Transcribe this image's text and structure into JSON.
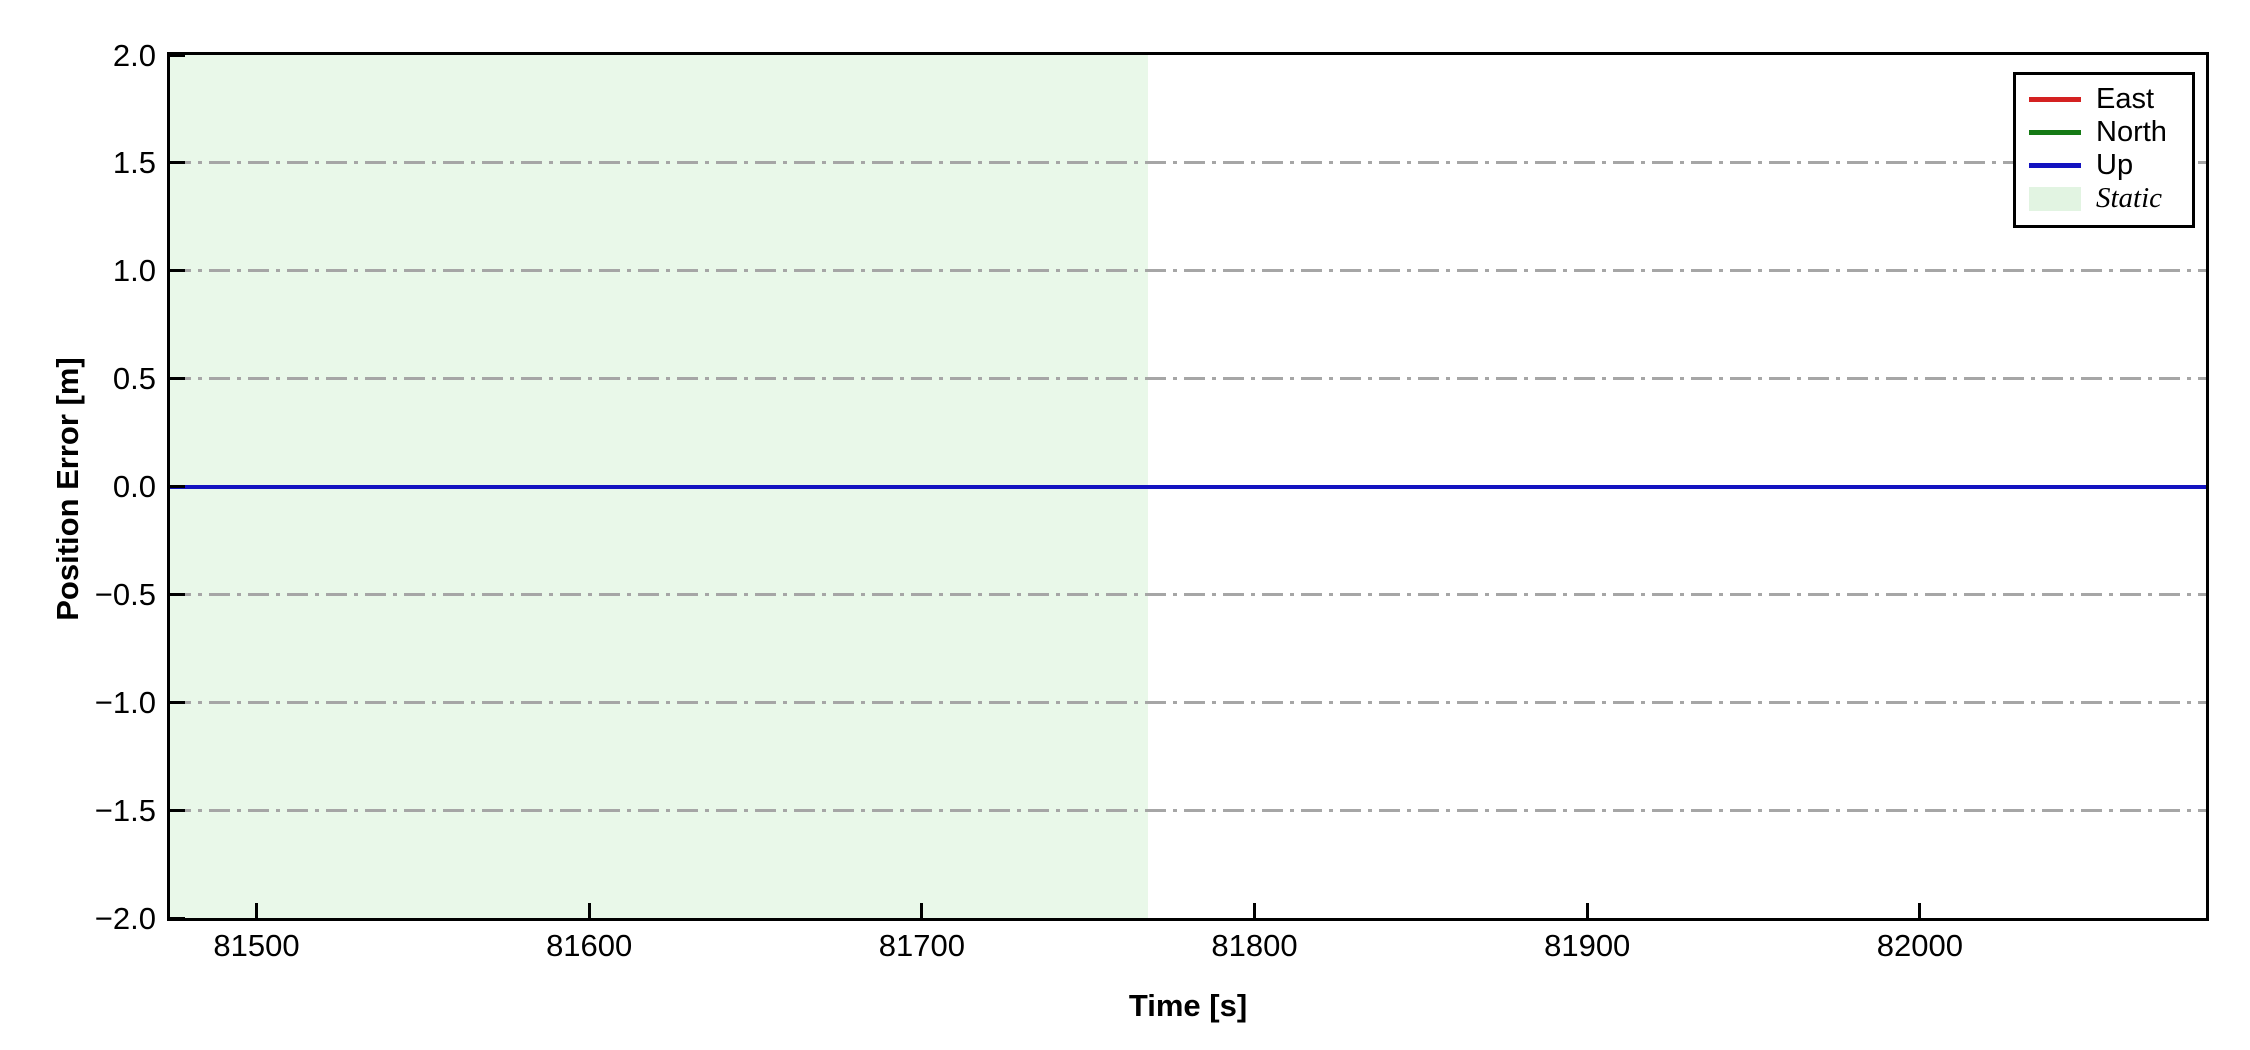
{
  "figure": {
    "background": "#ffffff",
    "frame_color": "#000000"
  },
  "chart_data": {
    "type": "line",
    "title": "",
    "xlabel": "Time [s]",
    "ylabel": "Position Error [m]",
    "xlim": [
      81474,
      82086
    ],
    "ylim": [
      -2.0,
      2.0
    ],
    "grid": {
      "axis": "y",
      "style": "dash-dot",
      "color": "#a6a6a6"
    },
    "x_ticks": [
      {
        "value": 81500,
        "label": "81500"
      },
      {
        "value": 81600,
        "label": "81600"
      },
      {
        "value": 81700,
        "label": "81700"
      },
      {
        "value": 81800,
        "label": "81800"
      },
      {
        "value": 81900,
        "label": "81900"
      },
      {
        "value": 82000,
        "label": "82000"
      }
    ],
    "y_ticks": [
      {
        "value": 2.0,
        "label": "2.0"
      },
      {
        "value": 1.5,
        "label": "1.5"
      },
      {
        "value": 1.0,
        "label": "1.0"
      },
      {
        "value": 0.5,
        "label": "0.5"
      },
      {
        "value": 0.0,
        "label": "0.0"
      },
      {
        "value": -0.5,
        "label": "−0.5"
      },
      {
        "value": -1.0,
        "label": "−1.0"
      },
      {
        "value": -1.5,
        "label": "−1.5"
      },
      {
        "value": -2.0,
        "label": "−2.0"
      }
    ],
    "series": [
      {
        "name": "East",
        "color": "#d42121",
        "x": [
          81474,
          82086
        ],
        "y": [
          0,
          0
        ]
      },
      {
        "name": "North",
        "color": "#157a15",
        "x": [
          81474,
          82086
        ],
        "y": [
          0,
          0
        ]
      },
      {
        "name": "Up",
        "color": "#1313c0",
        "x": [
          81474,
          82086
        ],
        "y": [
          0,
          0
        ]
      }
    ],
    "regions": [
      {
        "name": "Static",
        "x_start": 81474,
        "x_end": 81768,
        "color": "#e9f8e9"
      }
    ],
    "legend": {
      "position": "upper right",
      "entries": [
        {
          "label": "East",
          "type": "line",
          "color": "#d42121",
          "italic": false
        },
        {
          "label": "North",
          "type": "line",
          "color": "#157a15",
          "italic": false
        },
        {
          "label": "Up",
          "type": "line",
          "color": "#1313c0",
          "italic": false
        },
        {
          "label": "Static",
          "type": "patch",
          "color": "#e2f4e2",
          "italic": true
        }
      ]
    }
  }
}
